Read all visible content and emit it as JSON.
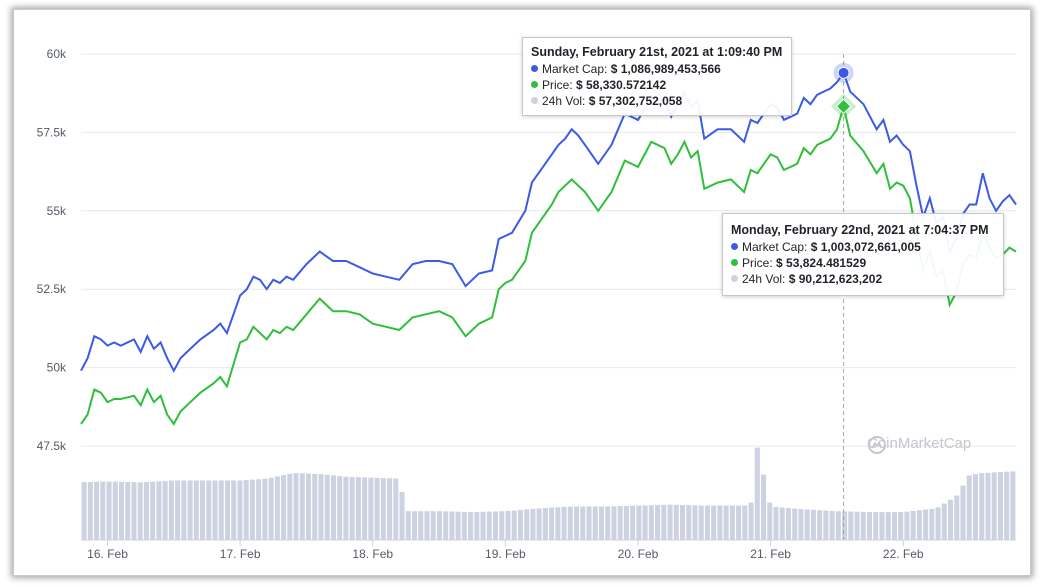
{
  "colors": {
    "market_cap": "#3b5be6",
    "price": "#2fbf3a",
    "volume": "#ccd2e0",
    "grid": "#e6e8ec",
    "crosshair": "#a0a6b0"
  },
  "watermark": {
    "text": "CoinMarketCap",
    "icon": "coinmarketcap-logo-icon"
  },
  "tooltips": [
    {
      "title": "Sunday, February 21st, 2021 at 1:09:40 PM",
      "rows": [
        {
          "label": "Market Cap:",
          "value": "$ 1,086,989,453,566",
          "color": "#3b5be6"
        },
        {
          "label": "Price:",
          "value": "$ 58,330.572142",
          "color": "#2fbf3a"
        },
        {
          "label": "24h Vol:",
          "value": "$ 57,302,752,058",
          "color": "#ccd2e0"
        }
      ]
    },
    {
      "title": "Monday, February 22nd, 2021 at 7:04:37 PM",
      "rows": [
        {
          "label": "Market Cap:",
          "value": "$ 1,003,072,661,005",
          "color": "#3b5be6"
        },
        {
          "label": "Price:",
          "value": "$ 53,824.481529",
          "color": "#2fbf3a"
        },
        {
          "label": "24h Vol:",
          "value": "$ 90,212,623,202",
          "color": "#ccd2e0"
        }
      ]
    }
  ],
  "chart_data": {
    "type": "line",
    "title": "",
    "xlabel": "",
    "ylabel": "",
    "x_ticks": [
      "16. Feb",
      "17. Feb",
      "18. Feb",
      "19. Feb",
      "20. Feb",
      "21. Feb",
      "22. Feb"
    ],
    "x_range_days": [
      15.8,
      22.85
    ],
    "y_ticks": [
      "47.5k",
      "50k",
      "52.5k",
      "55k",
      "57.5k",
      "60k"
    ],
    "ylim": [
      47500,
      60000
    ],
    "grid": true,
    "crosshair_at_day": 21.55,
    "series": [
      {
        "name": "Market Cap",
        "x_days": [
          15.8,
          15.85,
          15.9,
          15.95,
          16.0,
          16.05,
          16.1,
          16.2,
          16.25,
          16.3,
          16.35,
          16.4,
          16.45,
          16.5,
          16.55,
          16.6,
          16.7,
          16.8,
          16.85,
          16.9,
          17.0,
          17.05,
          17.1,
          17.15,
          17.2,
          17.25,
          17.3,
          17.35,
          17.4,
          17.5,
          17.6,
          17.7,
          17.8,
          17.9,
          18.0,
          18.1,
          18.2,
          18.3,
          18.4,
          18.5,
          18.6,
          18.7,
          18.8,
          18.9,
          18.95,
          19.0,
          19.05,
          19.15,
          19.2,
          19.3,
          19.35,
          19.4,
          19.45,
          19.5,
          19.55,
          19.6,
          19.7,
          19.8,
          19.9,
          20.0,
          20.1,
          20.2,
          20.25,
          20.3,
          20.35,
          20.4,
          20.45,
          20.5,
          20.6,
          20.7,
          20.8,
          20.85,
          20.9,
          21.0,
          21.05,
          21.1,
          21.2,
          21.25,
          21.3,
          21.35,
          21.4,
          21.45,
          21.5,
          21.55,
          21.6,
          21.7,
          21.8,
          21.85,
          21.9,
          21.95,
          22.0,
          22.05,
          22.1,
          22.15,
          22.2,
          22.25,
          22.3,
          22.35,
          22.4,
          22.45,
          22.5,
          22.55,
          22.6,
          22.65,
          22.7,
          22.75,
          22.8,
          22.85
        ],
        "values": [
          49900,
          50300,
          51000,
          50900,
          50700,
          50800,
          50700,
          50900,
          50500,
          51000,
          50600,
          50800,
          50300,
          49900,
          50300,
          50500,
          50900,
          51200,
          51400,
          51100,
          52300,
          52500,
          52900,
          52800,
          52500,
          52800,
          52700,
          52900,
          52800,
          53300,
          53700,
          53400,
          53400,
          53200,
          53000,
          52900,
          52800,
          53300,
          53400,
          53400,
          53300,
          52600,
          53000,
          53100,
          54100,
          54200,
          54300,
          55000,
          55900,
          56500,
          56800,
          57100,
          57300,
          57600,
          57400,
          57100,
          56500,
          57100,
          58100,
          57900,
          58600,
          58500,
          58000,
          58400,
          58800,
          58300,
          58500,
          57300,
          57600,
          57600,
          57200,
          57900,
          57800,
          58400,
          58300,
          57900,
          58100,
          58600,
          58400,
          58700,
          58800,
          58900,
          59100,
          59400,
          58800,
          58400,
          57600,
          57900,
          57200,
          57400,
          57100,
          56900,
          55800,
          54800,
          55400,
          54600,
          54800,
          53700,
          54100,
          54900,
          55200,
          55200,
          56200,
          55400,
          55000,
          55300,
          55500,
          55200
        ],
        "unit": "USD price scale"
      },
      {
        "name": "Price",
        "x_days": [
          15.8,
          15.85,
          15.9,
          15.95,
          16.0,
          16.05,
          16.1,
          16.2,
          16.25,
          16.3,
          16.35,
          16.4,
          16.45,
          16.5,
          16.55,
          16.6,
          16.7,
          16.8,
          16.85,
          16.9,
          17.0,
          17.05,
          17.1,
          17.15,
          17.2,
          17.25,
          17.3,
          17.35,
          17.4,
          17.5,
          17.6,
          17.7,
          17.8,
          17.9,
          18.0,
          18.1,
          18.2,
          18.3,
          18.4,
          18.5,
          18.6,
          18.7,
          18.8,
          18.9,
          18.95,
          19.0,
          19.05,
          19.15,
          19.2,
          19.3,
          19.35,
          19.4,
          19.45,
          19.5,
          19.55,
          19.6,
          19.7,
          19.8,
          19.9,
          20.0,
          20.1,
          20.2,
          20.25,
          20.3,
          20.35,
          20.4,
          20.45,
          20.5,
          20.6,
          20.7,
          20.8,
          20.85,
          20.9,
          21.0,
          21.05,
          21.1,
          21.2,
          21.25,
          21.3,
          21.35,
          21.4,
          21.45,
          21.5,
          21.55,
          21.6,
          21.7,
          21.8,
          21.85,
          21.9,
          21.95,
          22.0,
          22.05,
          22.1,
          22.15,
          22.2,
          22.25,
          22.3,
          22.35,
          22.4,
          22.45,
          22.5,
          22.55,
          22.6,
          22.65,
          22.7,
          22.75,
          22.8,
          22.85
        ],
        "values": [
          48200,
          48500,
          49300,
          49200,
          48900,
          49000,
          49000,
          49100,
          48800,
          49300,
          48900,
          49100,
          48500,
          48200,
          48600,
          48800,
          49200,
          49500,
          49700,
          49400,
          50800,
          50900,
          51300,
          51100,
          50900,
          51200,
          51100,
          51300,
          51200,
          51700,
          52200,
          51800,
          51800,
          51700,
          51400,
          51300,
          51200,
          51600,
          51700,
          51800,
          51600,
          51000,
          51400,
          51600,
          52500,
          52700,
          52800,
          53400,
          54300,
          54900,
          55200,
          55600,
          55800,
          56000,
          55800,
          55600,
          55000,
          55600,
          56600,
          56400,
          57200,
          57000,
          56500,
          56800,
          57200,
          56700,
          56900,
          55700,
          55900,
          56000,
          55600,
          56300,
          56200,
          56800,
          56700,
          56300,
          56500,
          57000,
          56800,
          57100,
          57200,
          57300,
          57600,
          58330,
          57400,
          56900,
          56200,
          56500,
          55700,
          55900,
          55800,
          55400,
          54200,
          53100,
          53700,
          52900,
          53100,
          52000,
          52400,
          53300,
          53600,
          53500,
          54300,
          53800,
          53500,
          53600,
          53824,
          53700
        ]
      },
      {
        "name": "24h Vol",
        "x_days": [
          15.8,
          16.0,
          16.25,
          16.5,
          16.75,
          17.0,
          17.2,
          17.4,
          17.6,
          17.8,
          18.0,
          18.2,
          18.25,
          18.5,
          18.75,
          19.0,
          19.25,
          19.5,
          19.75,
          20.0,
          20.25,
          20.5,
          20.75,
          20.85,
          20.9,
          21.0,
          21.25,
          21.5,
          21.75,
          22.0,
          22.25,
          22.4,
          22.5,
          22.6,
          22.85
        ],
        "values": [
          0.62,
          0.63,
          0.62,
          0.64,
          0.64,
          0.64,
          0.66,
          0.72,
          0.71,
          0.68,
          0.67,
          0.66,
          0.31,
          0.31,
          0.3,
          0.31,
          0.34,
          0.36,
          0.36,
          0.37,
          0.38,
          0.37,
          0.37,
          0.37,
          1.0,
          0.36,
          0.33,
          0.31,
          0.3,
          0.3,
          0.34,
          0.47,
          0.7,
          0.72,
          0.74
        ],
        "unit": "relative height of volume bars"
      }
    ]
  }
}
